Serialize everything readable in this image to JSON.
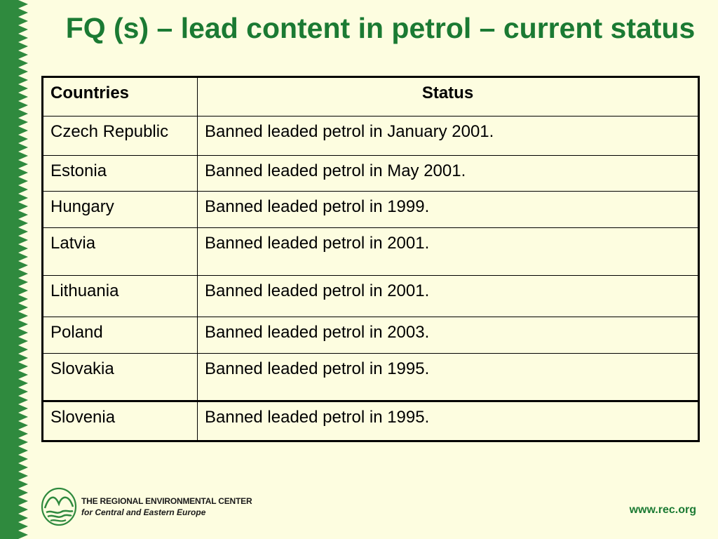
{
  "slide": {
    "title": "FQ (s) – lead content in petrol – current status",
    "accent_color": "#1b7a33",
    "background_color": "#fdfde0"
  },
  "table": {
    "headers": [
      "Countries",
      "Status"
    ],
    "rows": [
      [
        "Czech Republic",
        "Banned leaded petrol in January 2001."
      ],
      [
        "Estonia",
        "Banned leaded petrol in May 2001."
      ],
      [
        "Hungary",
        "Banned leaded petrol in 1999."
      ],
      [
        "Latvia",
        "Banned leaded petrol in 2001."
      ],
      [
        "Lithuania",
        "Banned leaded petrol in 2001."
      ],
      [
        "Poland",
        "Banned leaded petrol in 2003."
      ],
      [
        "Slovakia",
        "Banned leaded petrol in 1995."
      ],
      [
        "Slovenia",
        "Banned leaded petrol in 1995."
      ]
    ]
  },
  "footer": {
    "logo_icon": "rec-logo-icon",
    "org_line1": "THE REGIONAL ENVIRONMENTAL CENTER",
    "org_line2": "for Central and Eastern Europe",
    "url": "www.rec.org"
  }
}
